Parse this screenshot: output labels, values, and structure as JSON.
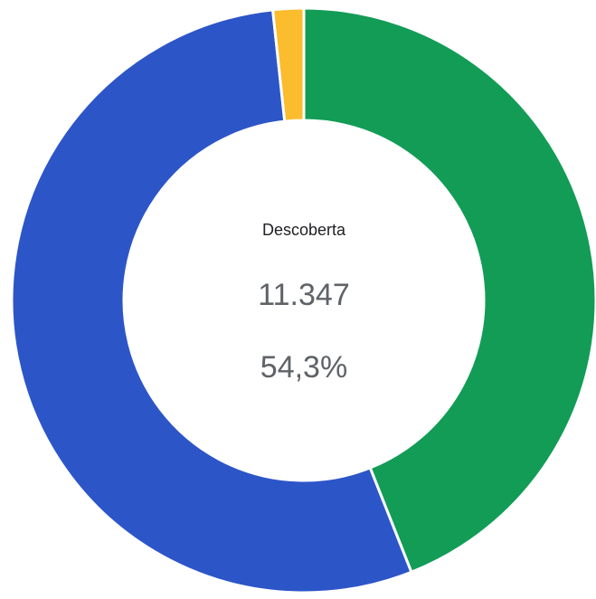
{
  "chart_data": {
    "type": "donut",
    "categories": [
      null,
      "Descoberta",
      null
    ],
    "values": [
      44.0,
      54.3,
      1.7
    ],
    "value_labels": [
      null,
      "54,3%",
      null
    ],
    "colors": [
      "#129c56",
      "#2c55c8",
      "#fbbc2d"
    ],
    "highlight": 1,
    "center_count": "11.347"
  }
}
